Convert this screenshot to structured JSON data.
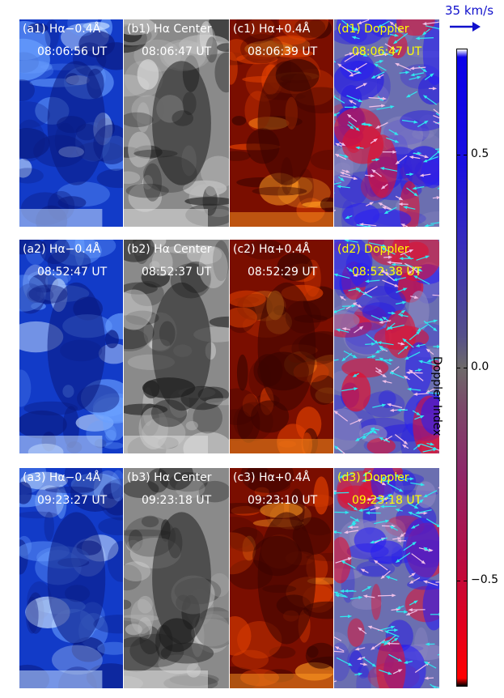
{
  "figure": {
    "rows": [
      {
        "panels": [
          {
            "label": "(a1) Hα−0.4Å",
            "time": "08:06:56 UT",
            "type": "blue_wing",
            "text_color": "#ffffff"
          },
          {
            "label": "(b1) Hα Center",
            "time": "08:06:47 UT",
            "type": "center",
            "text_color": "#ffffff"
          },
          {
            "label": "(c1) Hα+0.4Å",
            "time": "08:06:39 UT",
            "type": "red_wing",
            "text_color": "#ffffff"
          },
          {
            "label": "(d1) Doppler",
            "time": "08:06:47 UT",
            "type": "doppler",
            "text_color": "#ffff00"
          }
        ]
      },
      {
        "panels": [
          {
            "label": "(a2) Hα−0.4Å",
            "time": "08:52:47 UT",
            "type": "blue_wing",
            "text_color": "#ffffff"
          },
          {
            "label": "(b2) Hα Center",
            "time": "08:52:37 UT",
            "type": "center",
            "text_color": "#ffffff"
          },
          {
            "label": "(c2) Hα+0.4Å",
            "time": "08:52:29 UT",
            "type": "red_wing",
            "text_color": "#ffffff"
          },
          {
            "label": "(d2) Doppler",
            "time": "08:52:38 UT",
            "type": "doppler",
            "text_color": "#ffff00"
          }
        ]
      },
      {
        "panels": [
          {
            "label": "(a3) Hα−0.4Å",
            "time": "09:23:27 UT",
            "type": "blue_wing",
            "text_color": "#ffffff"
          },
          {
            "label": "(b3) Hα Center",
            "time": "09:23:18 UT",
            "type": "center",
            "text_color": "#ffffff"
          },
          {
            "label": "(c3) Hα+0.4Å",
            "time": "09:23:10 UT",
            "type": "red_wing",
            "text_color": "#ffffff"
          },
          {
            "label": "(d3) Doppler",
            "time": "09:23:18 UT",
            "type": "doppler",
            "text_color": "#ffff00"
          }
        ]
      }
    ]
  },
  "colorbar": {
    "title": "Doppler Index",
    "ticks": [
      {
        "value": 0.5,
        "label": "0.5"
      },
      {
        "value": 0.0,
        "label": "0.0"
      },
      {
        "value": -0.5,
        "label": "−0.5"
      }
    ],
    "range": [
      -0.75,
      0.75
    ],
    "top_color": "#0a00e8",
    "mid_color": "#6d6a6a",
    "bottom_color": "#ff0000"
  },
  "velocity_scale": {
    "label": "35 km/s",
    "color": "#1010cc"
  },
  "colors": {
    "blue_wing": "#1a3cd8",
    "center": "#7a7a7a",
    "red_wing": "#b02000",
    "arrow_cyan": "#30e8f0",
    "arrow_pink": "#f0c0e8"
  }
}
